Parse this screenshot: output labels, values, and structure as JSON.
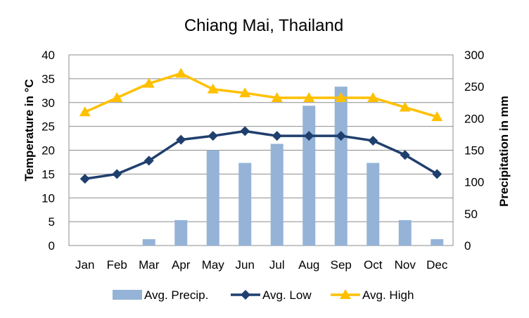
{
  "chart_data": {
    "type": "bar",
    "title": "Chiang Mai, Thailand",
    "categories": [
      "Jan",
      "Feb",
      "Mar",
      "Apr",
      "May",
      "Jun",
      "Jul",
      "Aug",
      "Sep",
      "Oct",
      "Nov",
      "Dec"
    ],
    "y_left": {
      "label": "Temperature in °C",
      "ylim": [
        0,
        40
      ],
      "ticks": [
        0,
        5,
        10,
        15,
        20,
        25,
        30,
        35,
        40
      ]
    },
    "y_right": {
      "label": "Precipitation in mm",
      "ylim": [
        0,
        300
      ],
      "ticks": [
        0,
        50,
        100,
        150,
        200,
        250,
        300
      ]
    },
    "grid": true,
    "legend_position": "bottom",
    "series": [
      {
        "name": "Avg. Precip.",
        "type": "bar",
        "axis": "right",
        "color": "#95b3d7",
        "values": [
          0,
          0,
          10,
          40,
          150,
          130,
          160,
          220,
          250,
          130,
          40,
          10
        ]
      },
      {
        "name": "Avg. Low",
        "type": "line",
        "axis": "left",
        "marker": "diamond",
        "color": "#1f3f6e",
        "values": [
          14,
          15,
          17.8,
          22.2,
          23,
          24,
          23,
          23,
          23,
          22,
          19,
          15
        ]
      },
      {
        "name": "Avg. High",
        "type": "line",
        "axis": "left",
        "marker": "triangle",
        "color": "#ffc000",
        "values": [
          28,
          31,
          34,
          36.1,
          32.8,
          32,
          31,
          31,
          31,
          31,
          29,
          27
        ]
      }
    ]
  }
}
